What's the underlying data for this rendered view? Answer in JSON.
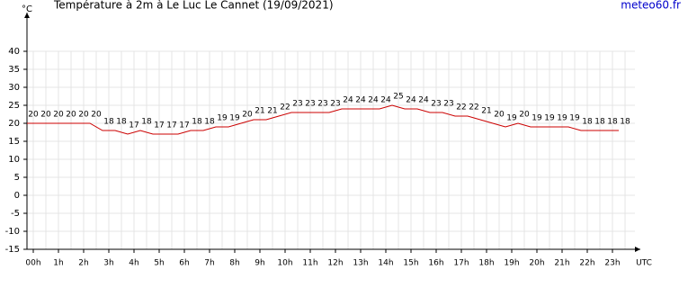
{
  "chart_data": {
    "type": "line",
    "title": "Température à 2m à Le Luc Le Cannet (19/09/2021)",
    "source": "meteo60.fr",
    "y_label": "°C",
    "x_label": "UTC",
    "categories": [
      "00h",
      null,
      "1h",
      null,
      "2h",
      null,
      "3h",
      null,
      "4h",
      null,
      "5h",
      null,
      "6h",
      null,
      "7h",
      null,
      "8h",
      null,
      "9h",
      null,
      "10h",
      null,
      "11h",
      null,
      "12h",
      null,
      "13h",
      null,
      "14h",
      null,
      "15h",
      null,
      "16h",
      null,
      "17h",
      null,
      "18h",
      null,
      "19h",
      null,
      "20h",
      null,
      "21h",
      null,
      "22h",
      null,
      "23h",
      null
    ],
    "series": [
      {
        "name": "Température",
        "color": "#cc0000",
        "values": [
          20,
          20,
          20,
          20,
          20,
          20,
          18,
          18,
          17,
          18,
          17,
          17,
          17,
          18,
          18,
          19,
          19,
          20,
          21,
          21,
          22,
          23,
          23,
          23,
          23,
          24,
          24,
          24,
          24,
          25,
          24,
          24,
          23,
          23,
          22,
          22,
          21,
          20,
          19,
          20,
          19,
          19,
          19,
          19,
          18,
          18,
          18,
          18
        ]
      }
    ],
    "ylim": [
      -15,
      45
    ],
    "yticks": [
      -15,
      -10,
      -5,
      0,
      5,
      10,
      15,
      20,
      25,
      30,
      35,
      40
    ],
    "grid": true
  }
}
